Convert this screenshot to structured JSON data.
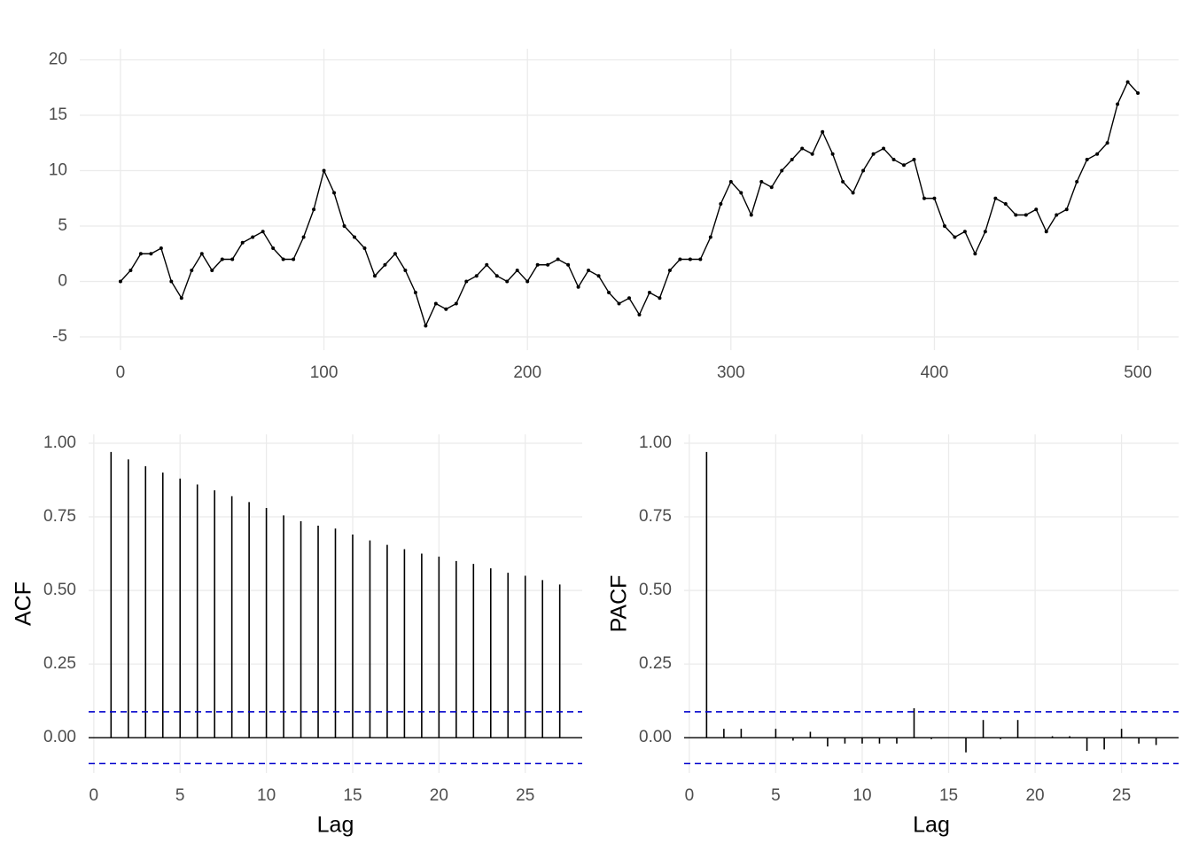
{
  "chart_data": [
    {
      "type": "line",
      "color": "#000000",
      "grid": true,
      "x": [
        0,
        5,
        10,
        15,
        20,
        25,
        30,
        35,
        40,
        45,
        50,
        55,
        60,
        65,
        70,
        75,
        80,
        85,
        90,
        95,
        100,
        105,
        110,
        115,
        120,
        125,
        130,
        135,
        140,
        145,
        150,
        155,
        160,
        165,
        170,
        175,
        180,
        185,
        190,
        195,
        200,
        205,
        210,
        215,
        220,
        225,
        230,
        235,
        240,
        245,
        250,
        255,
        260,
        265,
        270,
        275,
        280,
        285,
        290,
        295,
        300,
        305,
        310,
        315,
        320,
        325,
        330,
        335,
        340,
        345,
        350,
        355,
        360,
        365,
        370,
        375,
        380,
        385,
        390,
        395,
        400,
        405,
        410,
        415,
        420,
        425,
        430,
        435,
        440,
        445,
        450,
        455,
        460,
        465,
        470,
        475,
        480,
        485,
        490,
        495,
        500
      ],
      "values": [
        0,
        1,
        2.5,
        2.5,
        3,
        0,
        -1.5,
        1,
        2.5,
        1,
        2,
        2,
        3.5,
        4,
        4.5,
        3,
        2,
        2,
        4,
        6.5,
        10,
        8,
        5,
        4,
        3,
        0.5,
        1.5,
        2.5,
        1,
        -1,
        -4,
        -2,
        -2.5,
        -2,
        0,
        0.5,
        1.5,
        0.5,
        0,
        1,
        0,
        1.5,
        1.5,
        2,
        1.5,
        -0.5,
        1,
        0.5,
        -1,
        -2,
        -1.5,
        -3,
        -1,
        -1.5,
        1,
        2,
        2,
        2,
        4,
        7,
        9,
        8,
        6,
        9,
        8.5,
        10,
        11,
        12,
        11.5,
        13.5,
        11.5,
        9,
        8,
        10,
        11.5,
        12,
        11,
        10.5,
        11,
        7.5,
        7.5,
        5,
        4,
        4.5,
        2.5,
        4.5,
        7.5,
        7,
        6,
        6,
        6.5,
        4.5,
        6,
        6.5,
        9,
        11,
        11.5,
        12.5,
        16,
        18,
        17
      ],
      "xlim": [
        -20,
        520
      ],
      "ylim": [
        -6.2,
        21
      ],
      "xticks": [
        0,
        100,
        200,
        300,
        400,
        500
      ],
      "yticks": [
        -5,
        0,
        5,
        10,
        15,
        20
      ]
    },
    {
      "type": "stem",
      "color": "#000000",
      "grid": true,
      "y_label": "ACF",
      "x_label": "Lag",
      "x": [
        1,
        2,
        3,
        4,
        5,
        6,
        7,
        8,
        9,
        10,
        11,
        12,
        13,
        14,
        15,
        16,
        17,
        18,
        19,
        20,
        21,
        22,
        23,
        24,
        25,
        26,
        27
      ],
      "values": [
        0.97,
        0.945,
        0.922,
        0.9,
        0.88,
        0.86,
        0.84,
        0.82,
        0.8,
        0.78,
        0.755,
        0.735,
        0.72,
        0.71,
        0.69,
        0.67,
        0.655,
        0.64,
        0.625,
        0.615,
        0.6,
        0.59,
        0.575,
        0.56,
        0.55,
        0.535,
        0.52
      ],
      "hlines": [
        0.088,
        -0.088
      ],
      "hline_color": "#0000cc",
      "xlim": [
        -0.3,
        28.3
      ],
      "ylim": [
        -0.12,
        1.03
      ],
      "xticks": [
        0,
        5,
        10,
        15,
        20,
        25
      ],
      "yticks": [
        {
          "value": 0,
          "label": "0.00"
        },
        {
          "value": 0.25,
          "label": "0.25"
        },
        {
          "value": 0.5,
          "label": "0.50"
        },
        {
          "value": 0.75,
          "label": "0.75"
        },
        {
          "value": 1,
          "label": "1.00"
        }
      ]
    },
    {
      "type": "stem",
      "color": "#000000",
      "grid": true,
      "y_label": "PACF",
      "x_label": "Lag",
      "x": [
        1,
        2,
        3,
        4,
        5,
        6,
        7,
        8,
        9,
        10,
        11,
        12,
        13,
        14,
        15,
        16,
        17,
        18,
        19,
        20,
        21,
        22,
        23,
        24,
        25,
        26,
        27
      ],
      "values": [
        0.97,
        0.03,
        0.03,
        0,
        0.03,
        -0.01,
        0.02,
        -0.03,
        -0.02,
        -0.02,
        -0.02,
        -0.02,
        0.1,
        -0.005,
        0,
        -0.05,
        0.06,
        -0.005,
        0.06,
        0,
        0.005,
        0.005,
        -0.045,
        -0.04,
        0.03,
        -0.02,
        -0.025
      ],
      "hlines": [
        0.088,
        -0.088
      ],
      "hline_color": "#0000cc",
      "xlim": [
        -0.3,
        28.3
      ],
      "ylim": [
        -0.12,
        1.03
      ],
      "xticks": [
        0,
        5,
        10,
        15,
        20,
        25
      ],
      "yticks": [
        {
          "value": 0,
          "label": "0.00"
        },
        {
          "value": 0.25,
          "label": "0.25"
        },
        {
          "value": 0.5,
          "label": "0.50"
        },
        {
          "value": 0.75,
          "label": "0.75"
        },
        {
          "value": 1,
          "label": "1.00"
        }
      ]
    }
  ]
}
